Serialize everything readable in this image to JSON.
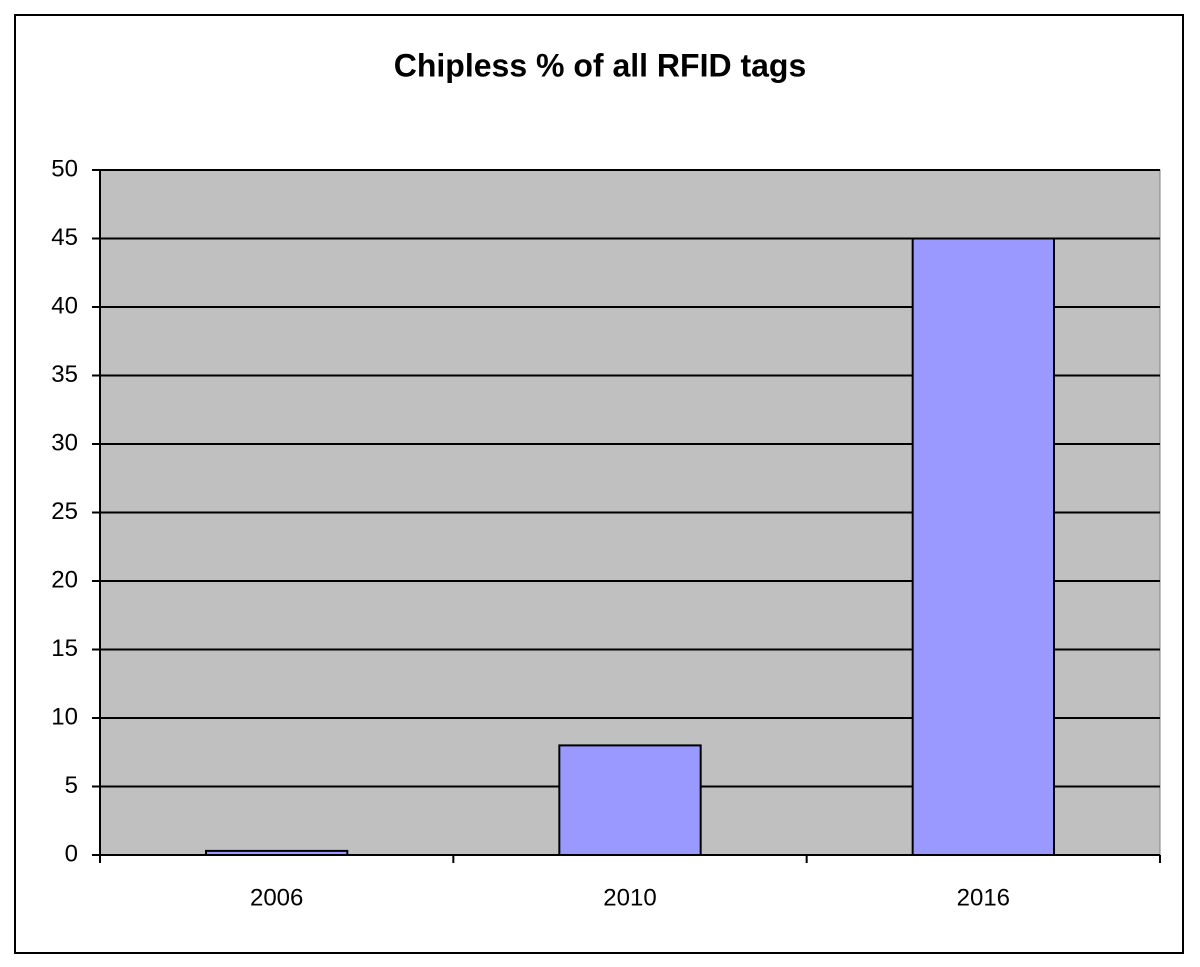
{
  "chart_data": {
    "type": "bar",
    "title": "Chipless % of all RFID tags",
    "categories": [
      "2006",
      "2010",
      "2016"
    ],
    "values": [
      0.3,
      8,
      45
    ],
    "color": "#9999ff",
    "ylim": [
      0,
      50
    ],
    "yticks": [
      0,
      5,
      10,
      15,
      20,
      25,
      30,
      35,
      40,
      45,
      50
    ],
    "grid": true
  }
}
